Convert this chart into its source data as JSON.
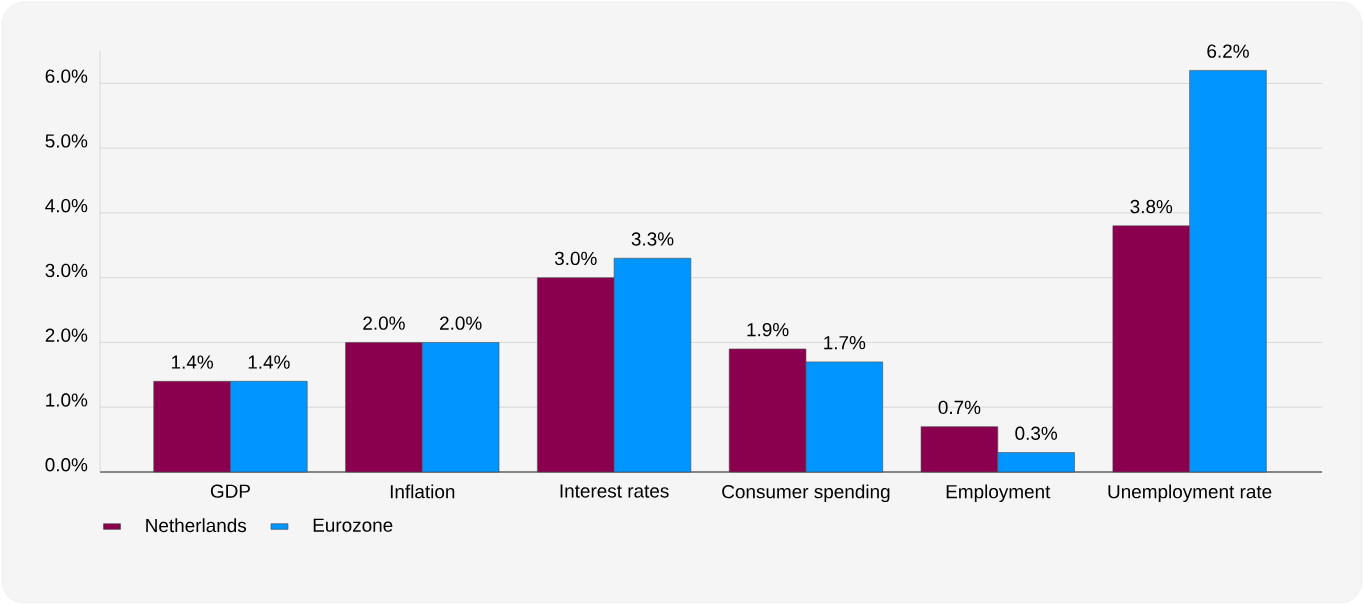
{
  "chart_data": {
    "type": "bar",
    "categories": [
      "GDP",
      "Inflation",
      "Interest rates",
      "Consumer spending",
      "Employment",
      "Unemployment rate"
    ],
    "series": [
      {
        "name": "Netherlands",
        "color": "#8a004f",
        "values": [
          1.4,
          2.0,
          3.0,
          1.9,
          0.7,
          3.8
        ],
        "value_labels": [
          "1.4%",
          "2.0%",
          "3.0%",
          "1.9%",
          "0.7%",
          "3.8%"
        ]
      },
      {
        "name": "Eurozone",
        "color": "#0095ff",
        "values": [
          1.4,
          2.0,
          3.3,
          1.7,
          0.3,
          6.2
        ],
        "value_labels": [
          "1.4%",
          "2.0%",
          "3.3%",
          "1.7%",
          "0.3%",
          "6.2%"
        ]
      }
    ],
    "ylim": [
      0,
      6.5
    ],
    "yticks": [
      {
        "value": 0,
        "label": "0.0%"
      },
      {
        "value": 1,
        "label": "1.0%"
      },
      {
        "value": 2,
        "label": "2.0%"
      },
      {
        "value": 3,
        "label": "3.0%"
      },
      {
        "value": 4,
        "label": "4.0%"
      },
      {
        "value": 5,
        "label": "5.0%"
      },
      {
        "value": 6,
        "label": "6.0%"
      }
    ],
    "grid": "y",
    "legend": "bottom left"
  }
}
